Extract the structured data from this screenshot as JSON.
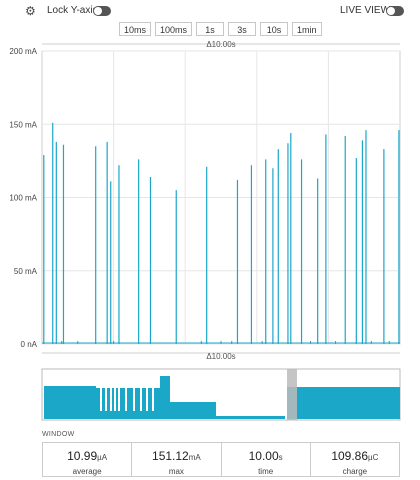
{
  "toolbar": {
    "lock_label": "Lock Y-axis",
    "live_label": "LIVE VIEW",
    "time_buttons": [
      "10ms",
      "100ms",
      "1s",
      "3s",
      "10s",
      "1min"
    ]
  },
  "colors": {
    "accent": "#1aa7c8",
    "grid": "#e6e6e6",
    "selection": "#bbbbbb"
  },
  "chart_data": {
    "type": "line",
    "ylabel": "",
    "yticks": [
      "0 nA",
      "50 mA",
      "100 mA",
      "150 mA",
      "200 mA"
    ],
    "ylim": [
      0,
      200
    ],
    "xlim": [
      0,
      10
    ],
    "window_label": "Δ10.00s",
    "spikes": [
      {
        "x": 0.05,
        "y": 129
      },
      {
        "x": 0.3,
        "y": 151
      },
      {
        "x": 0.4,
        "y": 138
      },
      {
        "x": 0.6,
        "y": 136
      },
      {
        "x": 1.5,
        "y": 135
      },
      {
        "x": 1.82,
        "y": 138
      },
      {
        "x": 1.92,
        "y": 111
      },
      {
        "x": 2.15,
        "y": 122
      },
      {
        "x": 2.7,
        "y": 126
      },
      {
        "x": 3.03,
        "y": 114
      },
      {
        "x": 3.75,
        "y": 105
      },
      {
        "x": 4.6,
        "y": 121
      },
      {
        "x": 5.46,
        "y": 112
      },
      {
        "x": 5.85,
        "y": 122
      },
      {
        "x": 6.25,
        "y": 126
      },
      {
        "x": 6.45,
        "y": 120
      },
      {
        "x": 6.6,
        "y": 133
      },
      {
        "x": 6.87,
        "y": 137
      },
      {
        "x": 6.95,
        "y": 144
      },
      {
        "x": 7.25,
        "y": 126
      },
      {
        "x": 7.7,
        "y": 113
      },
      {
        "x": 7.93,
        "y": 143
      },
      {
        "x": 8.47,
        "y": 142
      },
      {
        "x": 8.78,
        "y": 127
      },
      {
        "x": 8.95,
        "y": 139
      },
      {
        "x": 9.05,
        "y": 146
      },
      {
        "x": 9.55,
        "y": 133
      },
      {
        "x": 9.97,
        "y": 146
      }
    ],
    "overview_label": "Δ10.00s"
  },
  "window": {
    "label": "WINDOW",
    "stats": [
      {
        "value": "10.99",
        "unit": "µA",
        "name": "average"
      },
      {
        "value": "151.12",
        "unit": "mA",
        "name": "max"
      },
      {
        "value": "10.00",
        "unit": "s",
        "name": "time"
      },
      {
        "value": "109.86",
        "unit": "µC",
        "name": "charge"
      }
    ]
  }
}
